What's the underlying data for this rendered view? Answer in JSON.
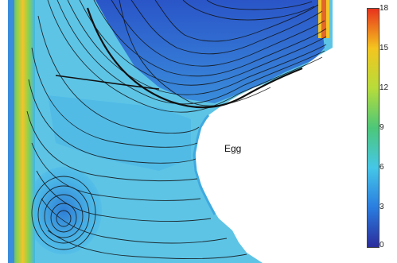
{
  "figure": {
    "region_label": "Egg"
  },
  "colorbar": {
    "ticks": [
      "18",
      "15",
      "12",
      "9",
      "6",
      "3",
      "0"
    ],
    "colors": [
      "#2b2d9c",
      "#2a7de0",
      "#45c7e8",
      "#4cc779",
      "#b7dc3a",
      "#f4c51f",
      "#e8331d"
    ]
  }
}
